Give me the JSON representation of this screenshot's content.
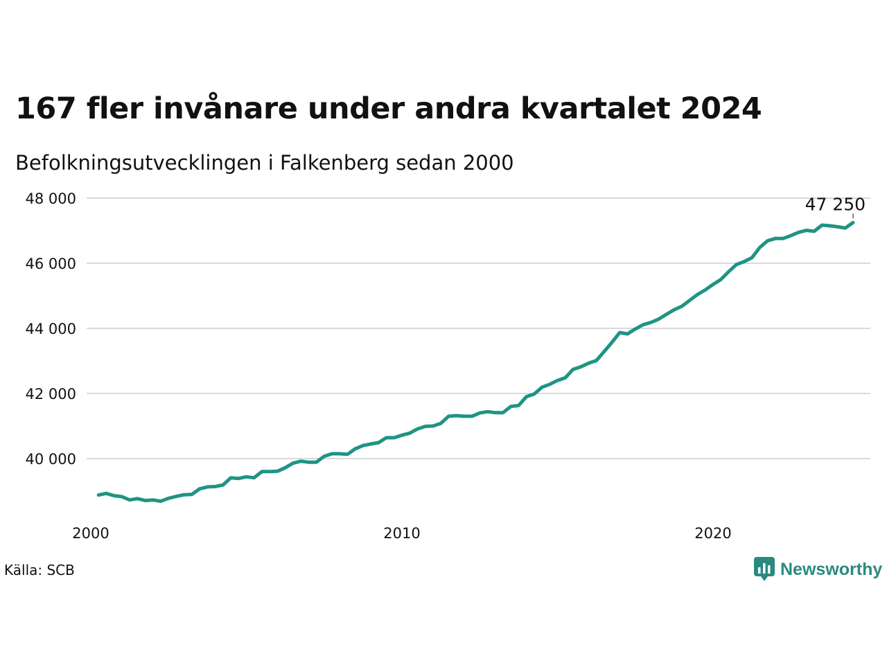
{
  "title": "167 fler invånare under andra kvartalet 2024",
  "subtitle": "Befolkningsutvecklingen i Falkenberg sedan 2000",
  "source": "Källa: SCB",
  "brand": {
    "name": "Newsworthy",
    "icon": "newsworthy-logo-icon",
    "color": "#2a8a80"
  },
  "chart_data": {
    "type": "line",
    "title": "167 fler invånare under andra kvartalet 2024",
    "subtitle": "Befolkningsutvecklingen i Falkenberg sedan 2000",
    "xlabel": "",
    "ylabel": "",
    "xlim": [
      2000,
      2025
    ],
    "ylim": [
      38200,
      48200
    ],
    "grid": true,
    "y_ticks": [
      {
        "value": 40000,
        "label": "40 000"
      },
      {
        "value": 42000,
        "label": "42 000"
      },
      {
        "value": 44000,
        "label": "44 000"
      },
      {
        "value": 46000,
        "label": "46 000"
      },
      {
        "value": 48000,
        "label": "48 000"
      }
    ],
    "x_ticks": [
      {
        "value": 2000,
        "label": "2000"
      },
      {
        "value": 2010,
        "label": "2010"
      },
      {
        "value": 2020,
        "label": "2020"
      }
    ],
    "line_color": "#1f9483",
    "end_label": "47 250",
    "series": [
      {
        "x": [
          2000.25,
          2000.5,
          2000.75,
          2001.0,
          2001.25,
          2001.5,
          2001.75,
          2002.0,
          2002.25,
          2002.5,
          2002.75,
          2003.0,
          2003.25,
          2003.5,
          2003.75,
          2004.0,
          2004.25,
          2004.5,
          2004.75,
          2005.0,
          2005.25,
          2005.5,
          2005.75,
          2006.0,
          2006.25,
          2006.5,
          2006.75,
          2007.0,
          2007.25,
          2007.5,
          2007.75,
          2008.0,
          2008.25,
          2008.5,
          2008.75,
          2009.0,
          2009.25,
          2009.5,
          2009.75,
          2010.0,
          2010.25,
          2010.5,
          2010.75,
          2011.0,
          2011.25,
          2011.5,
          2011.75,
          2012.0,
          2012.25,
          2012.5,
          2012.75,
          2013.0,
          2013.25,
          2013.5,
          2013.75,
          2014.0,
          2014.25,
          2014.5,
          2014.75,
          2015.0,
          2015.25,
          2015.5,
          2015.75,
          2016.0,
          2016.25,
          2016.5,
          2016.75,
          2017.0,
          2017.25,
          2017.5,
          2017.75,
          2018.0,
          2018.25,
          2018.5,
          2018.75,
          2019.0,
          2019.25,
          2019.5,
          2019.75,
          2020.0,
          2020.25,
          2020.5,
          2020.75,
          2021.0,
          2021.25,
          2021.5,
          2021.75,
          2022.0,
          2022.25,
          2022.5,
          2022.75,
          2023.0,
          2023.25,
          2023.5,
          2023.75,
          2024.0,
          2024.25,
          2024.5
        ],
        "values": [
          38880,
          38930,
          38860,
          38830,
          38730,
          38770,
          38710,
          38730,
          38690,
          38780,
          38840,
          38890,
          38900,
          39070,
          39130,
          39140,
          39190,
          39410,
          39390,
          39440,
          39410,
          39600,
          39600,
          39610,
          39720,
          39860,
          39920,
          39890,
          39890,
          40070,
          40150,
          40150,
          40130,
          40300,
          40400,
          40450,
          40490,
          40640,
          40640,
          40720,
          40780,
          40910,
          40990,
          41000,
          41080,
          41300,
          41320,
          41300,
          41300,
          41400,
          41440,
          41410,
          41410,
          41600,
          41630,
          41900,
          41980,
          42190,
          42280,
          42400,
          42480,
          42740,
          42820,
          42930,
          43010,
          43290,
          43570,
          43870,
          43830,
          43980,
          44110,
          44180,
          44280,
          44430,
          44570,
          44680,
          44860,
          45040,
          45180,
          45350,
          45500,
          45740,
          45960,
          46050,
          46170,
          46480,
          46690,
          46760,
          46760,
          46850,
          46950,
          47010,
          46980,
          47170,
          47150,
          47120,
          47080,
          47250
        ]
      }
    ]
  }
}
